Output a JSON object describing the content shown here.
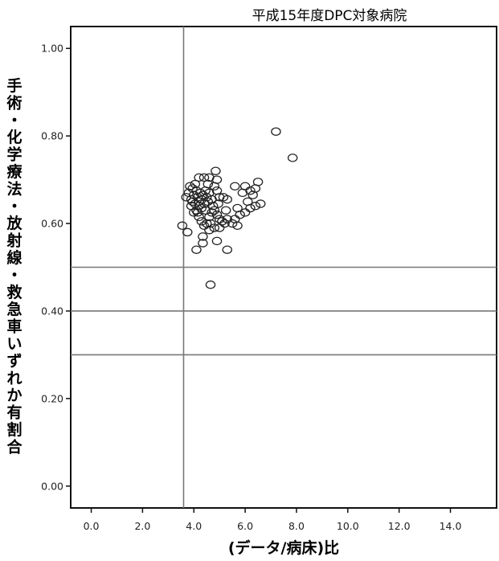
{
  "chart_data": {
    "type": "scatter",
    "title": "平成15年度DPC対象病院",
    "xlabel": "(データ/病床)比",
    "ylabel": "手術・化学療法・放射線・救急車いずれか有割合",
    "xlim": [
      -0.8,
      15.8
    ],
    "ylim": [
      -0.05,
      1.05
    ],
    "x_ticks": [
      "0.0",
      "2.0",
      "4.0",
      "6.0",
      "8.0",
      "10.0",
      "12.0",
      "14.0"
    ],
    "y_ticks": [
      "0.00",
      "0.20",
      "0.40",
      "0.60",
      "0.80",
      "1.00"
    ],
    "reference_lines": {
      "x": [
        3.6
      ],
      "y": [
        0.3,
        0.4,
        0.5
      ]
    },
    "marker_color": "#222222",
    "line_color": "#777777",
    "points": [
      [
        7.2,
        0.81
      ],
      [
        7.85,
        0.75
      ],
      [
        4.65,
        0.46
      ],
      [
        3.55,
        0.595
      ],
      [
        3.75,
        0.58
      ],
      [
        4.1,
        0.54
      ],
      [
        4.35,
        0.57
      ],
      [
        4.35,
        0.555
      ],
      [
        4.9,
        0.56
      ],
      [
        5.3,
        0.54
      ],
      [
        3.7,
        0.66
      ],
      [
        3.8,
        0.67
      ],
      [
        3.9,
        0.655
      ],
      [
        3.95,
        0.68
      ],
      [
        3.85,
        0.685
      ],
      [
        4.0,
        0.665
      ],
      [
        4.05,
        0.645
      ],
      [
        4.1,
        0.675
      ],
      [
        4.15,
        0.66
      ],
      [
        4.2,
        0.65
      ],
      [
        4.25,
        0.67
      ],
      [
        4.3,
        0.655
      ],
      [
        4.35,
        0.665
      ],
      [
        4.4,
        0.645
      ],
      [
        4.45,
        0.675
      ],
      [
        4.5,
        0.66
      ],
      [
        4.55,
        0.65
      ],
      [
        4.6,
        0.67
      ],
      [
        4.2,
        0.64
      ],
      [
        4.3,
        0.635
      ],
      [
        4.0,
        0.625
      ],
      [
        4.1,
        0.63
      ],
      [
        4.2,
        0.615
      ],
      [
        4.3,
        0.605
      ],
      [
        4.5,
        0.6
      ],
      [
        4.6,
        0.615
      ],
      [
        4.7,
        0.625
      ],
      [
        4.8,
        0.63
      ],
      [
        4.9,
        0.62
      ],
      [
        5.0,
        0.61
      ],
      [
        5.1,
        0.605
      ],
      [
        5.2,
        0.6
      ],
      [
        5.3,
        0.61
      ],
      [
        4.4,
        0.595
      ],
      [
        4.6,
        0.585
      ],
      [
        4.8,
        0.59
      ],
      [
        5.0,
        0.59
      ],
      [
        5.5,
        0.6
      ],
      [
        5.7,
        0.595
      ],
      [
        5.8,
        0.62
      ],
      [
        6.0,
        0.625
      ],
      [
        6.1,
        0.65
      ],
      [
        6.2,
        0.635
      ],
      [
        6.4,
        0.64
      ],
      [
        6.6,
        0.645
      ],
      [
        6.3,
        0.665
      ],
      [
        6.2,
        0.675
      ],
      [
        6.4,
        0.68
      ],
      [
        6.5,
        0.695
      ],
      [
        6.0,
        0.685
      ],
      [
        5.9,
        0.67
      ],
      [
        5.6,
        0.685
      ],
      [
        5.3,
        0.655
      ],
      [
        5.0,
        0.66
      ],
      [
        4.9,
        0.675
      ],
      [
        4.8,
        0.685
      ],
      [
        4.9,
        0.7
      ],
      [
        4.85,
        0.72
      ],
      [
        4.6,
        0.705
      ],
      [
        4.4,
        0.705
      ],
      [
        4.2,
        0.705
      ],
      [
        4.05,
        0.69
      ],
      [
        3.95,
        0.65
      ],
      [
        3.9,
        0.64
      ],
      [
        4.15,
        0.625
      ],
      [
        4.55,
        0.69
      ],
      [
        4.7,
        0.655
      ],
      [
        4.75,
        0.64
      ],
      [
        5.15,
        0.66
      ],
      [
        5.25,
        0.63
      ],
      [
        5.7,
        0.635
      ],
      [
        5.6,
        0.61
      ],
      [
        4.45,
        0.63
      ],
      [
        4.65,
        0.6
      ],
      [
        4.95,
        0.645
      ]
    ]
  }
}
